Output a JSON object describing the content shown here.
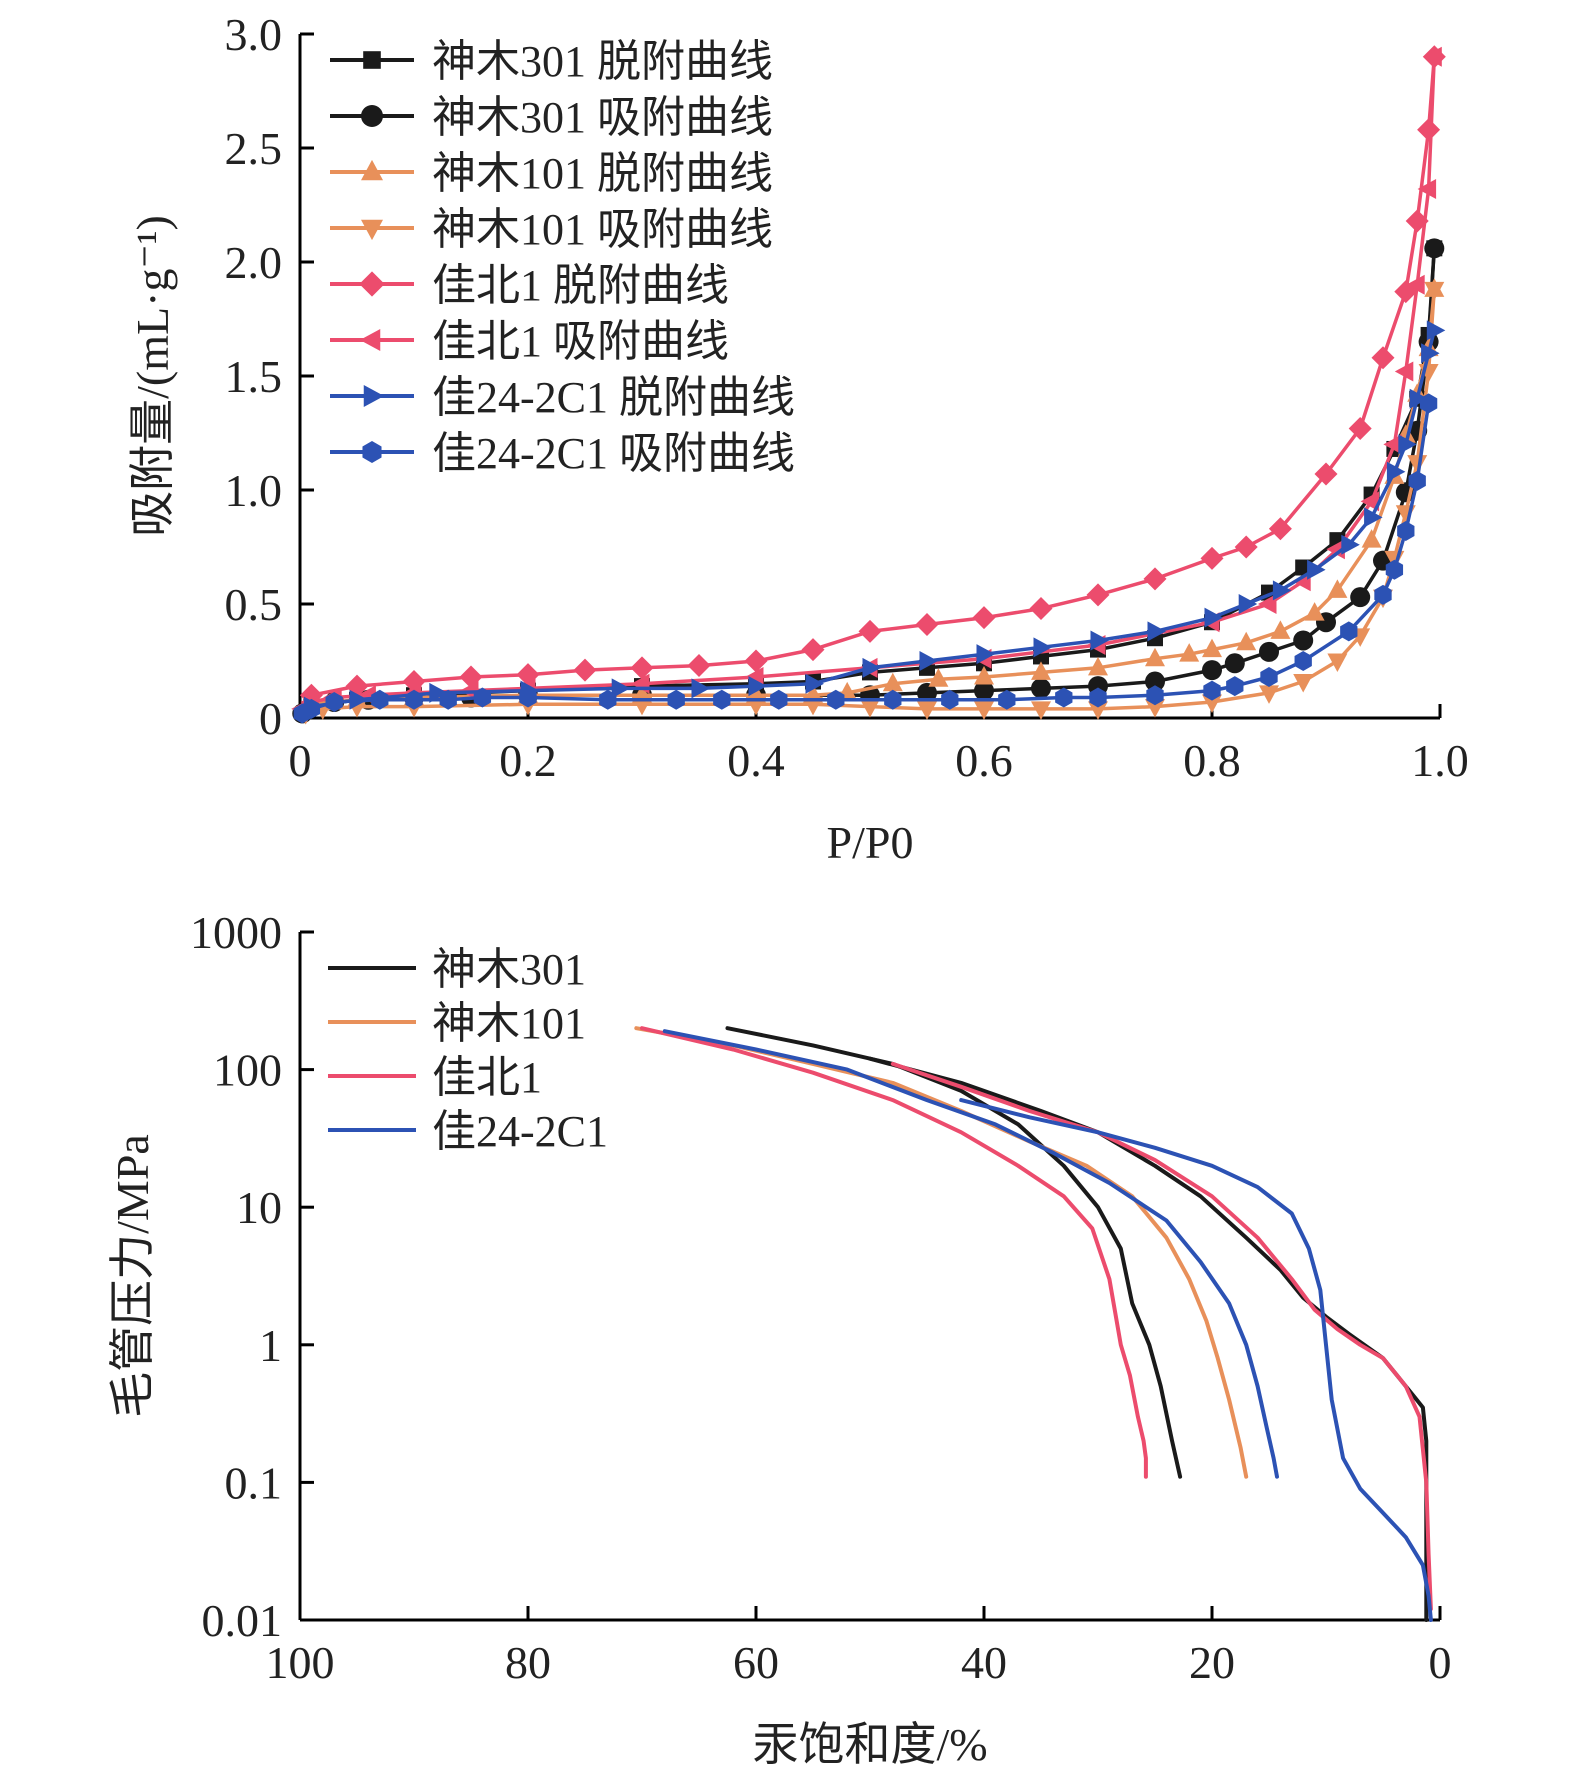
{
  "chart_data": [
    {
      "type": "line",
      "title": "",
      "xlabel": "P/P0",
      "ylabel": "吸附量/(mL·g⁻¹)",
      "xlim": [
        0,
        1.0
      ],
      "ylim": [
        0,
        3.0
      ],
      "x_ticks": [
        "0",
        "0.2",
        "0.4",
        "0.6",
        "0.8",
        "1.0"
      ],
      "y_ticks": [
        "0",
        "0.5",
        "1.0",
        "1.5",
        "2.0",
        "2.5",
        "3.0"
      ],
      "grid": false,
      "legend_position": "top-left",
      "series": [
        {
          "name": "神木301 脱附曲线",
          "color": "#1a1a1a",
          "marker": "square",
          "x": [
            0.01,
            0.05,
            0.1,
            0.2,
            0.3,
            0.4,
            0.45,
            0.5,
            0.55,
            0.6,
            0.65,
            0.7,
            0.75,
            0.8,
            0.85,
            0.88,
            0.91,
            0.94,
            0.96,
            0.98,
            0.99,
            0.995
          ],
          "y": [
            0.05,
            0.08,
            0.1,
            0.12,
            0.14,
            0.15,
            0.16,
            0.2,
            0.22,
            0.24,
            0.27,
            0.3,
            0.35,
            0.42,
            0.55,
            0.66,
            0.78,
            0.98,
            1.18,
            1.4,
            1.68,
            2.06
          ]
        },
        {
          "name": "神木301 吸附曲线",
          "color": "#1a1a1a",
          "marker": "circle",
          "x": [
            0.002,
            0.01,
            0.03,
            0.06,
            0.1,
            0.15,
            0.2,
            0.3,
            0.4,
            0.5,
            0.55,
            0.6,
            0.65,
            0.7,
            0.75,
            0.8,
            0.82,
            0.85,
            0.88,
            0.9,
            0.93,
            0.95,
            0.97,
            0.98,
            0.99,
            0.995
          ],
          "y": [
            0.02,
            0.05,
            0.07,
            0.08,
            0.09,
            0.09,
            0.1,
            0.1,
            0.1,
            0.1,
            0.11,
            0.12,
            0.13,
            0.14,
            0.16,
            0.21,
            0.24,
            0.29,
            0.34,
            0.42,
            0.53,
            0.69,
            0.99,
            1.26,
            1.65,
            2.06
          ]
        },
        {
          "name": "神木101 脱附曲线",
          "color": "#e8905a",
          "marker": "triangle-up",
          "x": [
            0.01,
            0.05,
            0.1,
            0.2,
            0.3,
            0.4,
            0.45,
            0.48,
            0.52,
            0.56,
            0.6,
            0.65,
            0.7,
            0.75,
            0.78,
            0.8,
            0.83,
            0.86,
            0.89,
            0.91,
            0.94,
            0.96,
            0.97,
            0.98,
            0.99,
            0.995
          ],
          "y": [
            0.06,
            0.08,
            0.09,
            0.1,
            0.1,
            0.1,
            0.1,
            0.11,
            0.15,
            0.17,
            0.18,
            0.2,
            0.22,
            0.26,
            0.28,
            0.3,
            0.33,
            0.38,
            0.46,
            0.56,
            0.78,
            1.06,
            1.24,
            1.42,
            1.62,
            1.88
          ]
        },
        {
          "name": "神木101 吸附曲线",
          "color": "#e8905a",
          "marker": "triangle-down",
          "x": [
            0.005,
            0.02,
            0.05,
            0.1,
            0.2,
            0.3,
            0.4,
            0.45,
            0.5,
            0.55,
            0.6,
            0.65,
            0.7,
            0.75,
            0.8,
            0.85,
            0.88,
            0.91,
            0.93,
            0.95,
            0.96,
            0.97,
            0.98,
            0.99,
            0.995
          ],
          "y": [
            0.02,
            0.04,
            0.05,
            0.05,
            0.06,
            0.06,
            0.06,
            0.06,
            0.05,
            0.04,
            0.04,
            0.04,
            0.04,
            0.05,
            0.07,
            0.11,
            0.16,
            0.25,
            0.36,
            0.53,
            0.7,
            0.9,
            1.12,
            1.52,
            1.88
          ]
        },
        {
          "name": "佳北1 脱附曲线",
          "color": "#ec4c6d",
          "marker": "diamond",
          "x": [
            0.01,
            0.05,
            0.1,
            0.15,
            0.2,
            0.25,
            0.3,
            0.35,
            0.4,
            0.45,
            0.5,
            0.55,
            0.6,
            0.65,
            0.7,
            0.75,
            0.8,
            0.83,
            0.86,
            0.9,
            0.93,
            0.95,
            0.97,
            0.98,
            0.99,
            0.995
          ],
          "y": [
            0.1,
            0.14,
            0.16,
            0.18,
            0.19,
            0.21,
            0.22,
            0.23,
            0.25,
            0.3,
            0.38,
            0.41,
            0.44,
            0.48,
            0.54,
            0.61,
            0.7,
            0.75,
            0.83,
            1.07,
            1.27,
            1.58,
            1.87,
            2.18,
            2.58,
            2.9
          ]
        },
        {
          "name": "佳北1 吸附曲线",
          "color": "#ec4c6d",
          "marker": "triangle-left",
          "x": [
            0.002,
            0.01,
            0.03,
            0.06,
            0.1,
            0.15,
            0.2,
            0.3,
            0.4,
            0.5,
            0.6,
            0.7,
            0.8,
            0.85,
            0.88,
            0.91,
            0.94,
            0.96,
            0.97,
            0.98,
            0.99,
            0.995
          ],
          "y": [
            0.04,
            0.07,
            0.09,
            0.1,
            0.11,
            0.12,
            0.13,
            0.15,
            0.18,
            0.22,
            0.26,
            0.32,
            0.42,
            0.5,
            0.6,
            0.74,
            0.95,
            1.2,
            1.52,
            1.9,
            2.32,
            2.9
          ]
        },
        {
          "name": "佳24-2C1 脱附曲线",
          "color": "#2c52b4",
          "marker": "triangle-right",
          "x": [
            0.01,
            0.05,
            0.12,
            0.2,
            0.28,
            0.35,
            0.4,
            0.45,
            0.5,
            0.55,
            0.6,
            0.65,
            0.7,
            0.75,
            0.8,
            0.83,
            0.86,
            0.89,
            0.92,
            0.94,
            0.96,
            0.97,
            0.98,
            0.99,
            0.995
          ],
          "y": [
            0.05,
            0.08,
            0.11,
            0.12,
            0.13,
            0.13,
            0.14,
            0.15,
            0.22,
            0.25,
            0.28,
            0.31,
            0.34,
            0.38,
            0.44,
            0.5,
            0.56,
            0.65,
            0.76,
            0.88,
            1.08,
            1.2,
            1.4,
            1.6,
            1.7
          ]
        },
        {
          "name": "佳24-2C1 吸附曲线",
          "color": "#2c52b4",
          "marker": "hexagon",
          "x": [
            0.002,
            0.01,
            0.03,
            0.07,
            0.1,
            0.13,
            0.16,
            0.2,
            0.27,
            0.33,
            0.37,
            0.42,
            0.47,
            0.52,
            0.57,
            0.62,
            0.67,
            0.7,
            0.75,
            0.8,
            0.82,
            0.85,
            0.88,
            0.92,
            0.95,
            0.96,
            0.97,
            0.98,
            0.99
          ],
          "y": [
            0.02,
            0.04,
            0.07,
            0.08,
            0.08,
            0.08,
            0.09,
            0.09,
            0.08,
            0.08,
            0.08,
            0.08,
            0.08,
            0.08,
            0.08,
            0.08,
            0.09,
            0.09,
            0.1,
            0.12,
            0.14,
            0.18,
            0.25,
            0.38,
            0.54,
            0.65,
            0.82,
            1.04,
            1.38
          ]
        }
      ]
    },
    {
      "type": "line",
      "title": "",
      "xlabel": "汞饱和度/%",
      "ylabel": "毛管压力/MPa",
      "xlim": [
        100,
        0
      ],
      "ylim": [
        0.01,
        1000
      ],
      "y_scale": "log",
      "x_ticks": [
        "100",
        "80",
        "60",
        "40",
        "20",
        "0"
      ],
      "y_ticks": [
        "0.01",
        "0.1",
        "1",
        "10",
        "100",
        "1000"
      ],
      "grid": false,
      "legend_position": "top-left",
      "series": [
        {
          "name": "神木301",
          "color": "#1a1a1a",
          "x": [
            62.5,
            55,
            48,
            42,
            37,
            33,
            30,
            28,
            27,
            25.5,
            24.5,
            23.5,
            22.8
          ],
          "y": [
            200,
            150,
            110,
            70,
            40,
            20,
            10,
            5,
            2,
            1,
            0.5,
            0.2,
            0.11
          ]
        },
        {
          "name": "神木301",
          "color": "#1a1a1a",
          "x": [
            50,
            42,
            35,
            30,
            25,
            21,
            17,
            14,
            12,
            10,
            8,
            5,
            3,
            1.5,
            1.2,
            1.2
          ],
          "y": [
            120,
            80,
            50,
            35,
            20,
            12,
            6,
            3.5,
            2.2,
            1.6,
            1.2,
            0.8,
            0.5,
            0.35,
            0.2,
            0.01
          ]
        },
        {
          "name": "神木101",
          "color": "#e8905a",
          "x": [
            70.5,
            62,
            55,
            48,
            42,
            36,
            31,
            27,
            24,
            22,
            20.5,
            19.5,
            18.5,
            17.5,
            17
          ],
          "y": [
            200,
            150,
            110,
            80,
            50,
            30,
            20,
            12,
            6,
            3,
            1.5,
            0.8,
            0.4,
            0.18,
            0.11
          ]
        },
        {
          "name": "佳北1",
          "color": "#ec4c6d",
          "x": [
            70,
            62,
            55,
            48,
            42,
            37,
            33,
            30.5,
            29,
            28,
            27.2,
            26.5,
            26,
            25.8,
            25.8
          ],
          "y": [
            200,
            140,
            95,
            60,
            35,
            20,
            12,
            7,
            3,
            1,
            0.6,
            0.3,
            0.2,
            0.15,
            0.11
          ]
        },
        {
          "name": "佳北1",
          "color": "#ec4c6d",
          "x": [
            48,
            42,
            36,
            30,
            25,
            20,
            16,
            13,
            11,
            9,
            7,
            5,
            3,
            1.8,
            1.2,
            1.0,
            0.8
          ],
          "y": [
            110,
            75,
            50,
            35,
            22,
            12,
            6,
            3,
            1.8,
            1.3,
            1.0,
            0.8,
            0.5,
            0.3,
            0.1,
            0.03,
            0.012
          ]
        },
        {
          "name": "佳24-2C1",
          "color": "#2c52b4",
          "x": [
            68,
            60,
            52,
            45,
            39,
            34,
            29,
            24,
            21,
            18.5,
            17,
            16,
            15.2,
            14.6,
            14.3
          ],
          "y": [
            190,
            140,
            100,
            60,
            40,
            25,
            15,
            8,
            4,
            2,
            1,
            0.5,
            0.25,
            0.15,
            0.11
          ]
        },
        {
          "name": "佳24-2C1",
          "color": "#2c52b4",
          "x": [
            42,
            36,
            30,
            25,
            20,
            16,
            13,
            11.5,
            10.5,
            10,
            9.5,
            8.5,
            7,
            5,
            3,
            1.5,
            1.0,
            0.8
          ],
          "y": [
            60,
            45,
            35,
            27,
            20,
            14,
            9,
            5,
            2.5,
            1,
            0.4,
            0.15,
            0.09,
            0.06,
            0.04,
            0.025,
            0.015,
            0.01
          ]
        }
      ],
      "legend": [
        {
          "name": "神木301",
          "color": "#1a1a1a"
        },
        {
          "name": "神木101",
          "color": "#e8905a"
        },
        {
          "name": "佳北1",
          "color": "#ec4c6d"
        },
        {
          "name": "佳24-2C1",
          "color": "#2c52b4"
        }
      ]
    }
  ]
}
